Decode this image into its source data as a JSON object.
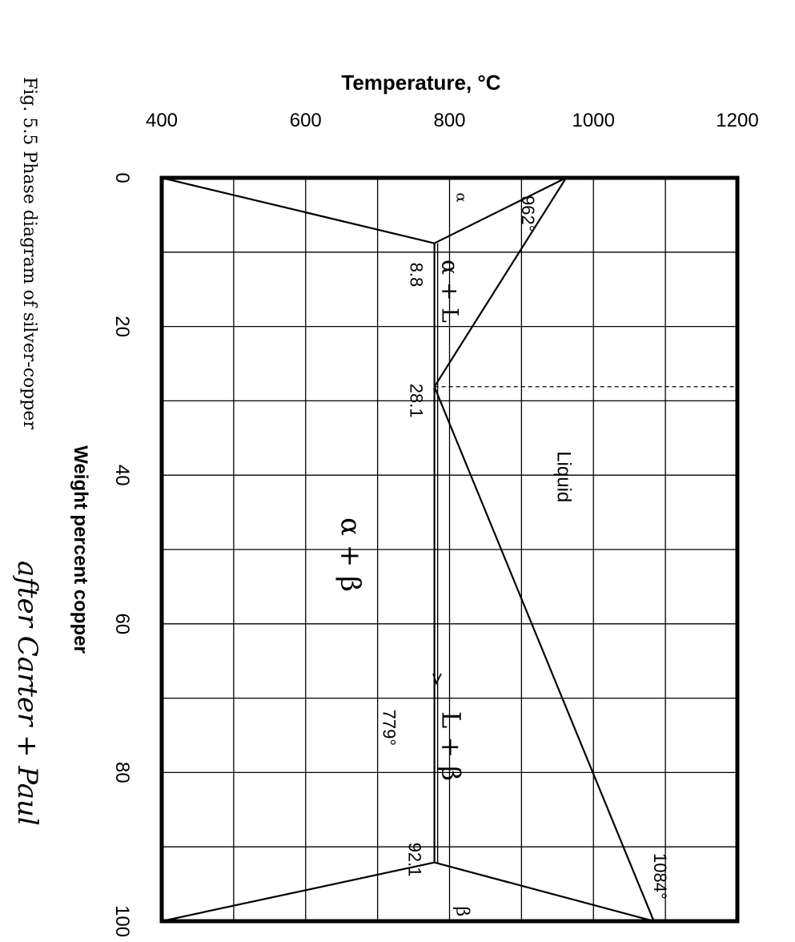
{
  "figure": {
    "caption": "Fig. 5.5   Phase diagram of silver-copper",
    "handwritten_note": "after Carter + Paul"
  },
  "chart_data": {
    "type": "line",
    "title": "",
    "xlabel": "Weight percent copper",
    "ylabel": "Temperature, °C",
    "xlim": [
      0,
      100
    ],
    "ylim": [
      400,
      1200
    ],
    "x_ticks": [
      "0",
      "20",
      "40",
      "60",
      "80",
      "100"
    ],
    "y_ticks": [
      "400",
      "600",
      "800",
      "1000",
      "1200"
    ],
    "grid": true,
    "orientation": "rotated 90° clockwise (temperature axis along the top)",
    "series": [
      {
        "values": [
          [
            0,
            962
          ],
          [
            8.8,
            779
          ],
          [
            28.1,
            779
          ],
          [
            92.1,
            779
          ],
          [
            100,
            1084
          ]
        ]
      },
      {
        "values": [
          [
            0,
            962
          ],
          [
            28.1,
            779
          ],
          [
            100,
            1084
          ]
        ]
      },
      {
        "values": [
          [
            0,
            400
          ],
          [
            8.8,
            779
          ]
        ]
      },
      {
        "values": [
          [
            100,
            400
          ],
          [
            92.1,
            779
          ]
        ]
      }
    ],
    "annotations": [
      {
        "text": "962°",
        "x": 0,
        "y": 962
      },
      {
        "text": "8.8",
        "x": 8.8,
        "y": 779
      },
      {
        "text": "28.1",
        "x": 28.1,
        "y": 779
      },
      {
        "text": "779°",
        "x": 70,
        "y": 779
      },
      {
        "text": "92.1",
        "x": 92.1,
        "y": 779
      },
      {
        "text": "1084°",
        "x": 100,
        "y": 1084
      }
    ],
    "region_labels": [
      {
        "text": "Liquid",
        "x": 40,
        "y": 950
      },
      {
        "text": "α",
        "x": 2,
        "y": 810
      },
      {
        "text": "α + L",
        "x": 11,
        "y": 790
      },
      {
        "text": "α + β",
        "x": 50,
        "y": 650
      },
      {
        "text": "L + β",
        "x": 75,
        "y": 790
      },
      {
        "text": "β",
        "x": 98,
        "y": 810
      }
    ]
  }
}
